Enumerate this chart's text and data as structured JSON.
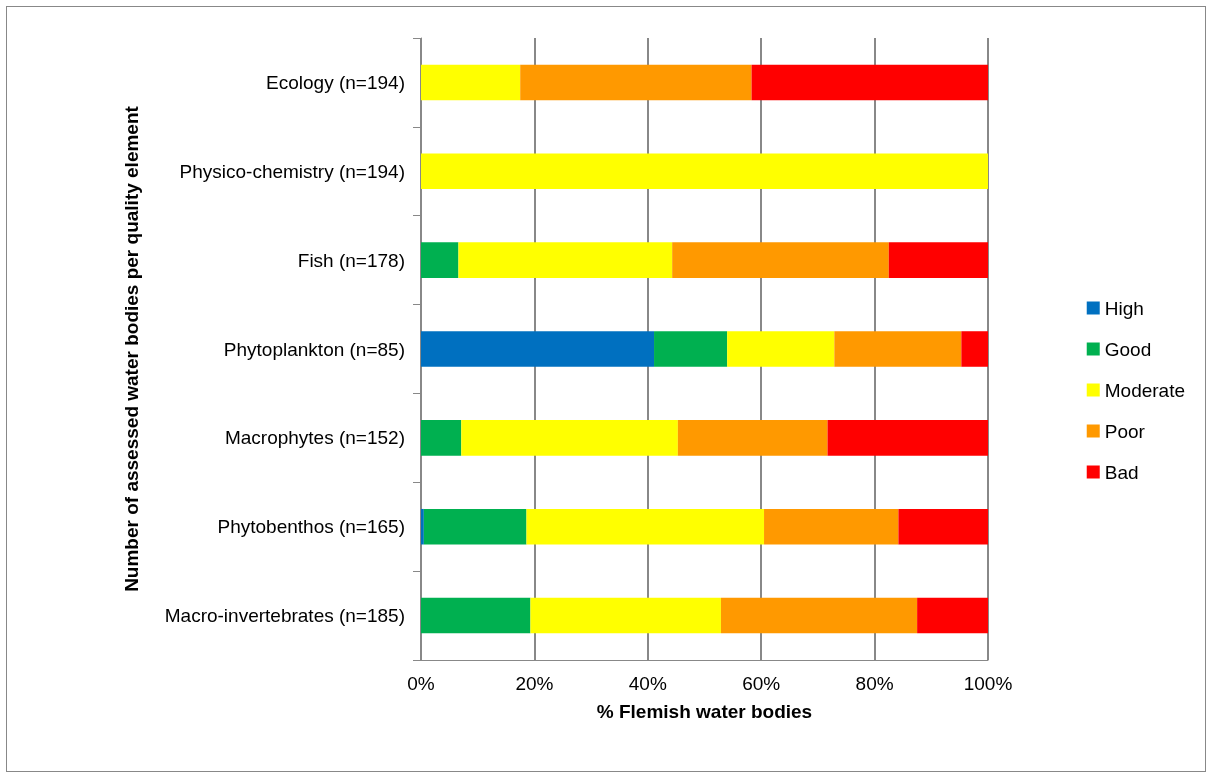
{
  "chart_data": {
    "type": "bar",
    "orientation": "horizontal",
    "stacked": true,
    "xlabel": "% Flemish water bodies",
    "ylabel": "Number of assessed water bodies per quality element",
    "categories": [
      "Ecology (n=194)",
      "Physico-chemistry (n=194)",
      "Fish (n=178)",
      "Phytoplankton (n=85)",
      "Macrophytes (n=152)",
      "Phytobenthos (n=165)",
      "Macro-invertebrates (n=185)"
    ],
    "series": [
      {
        "name": "High",
        "color": "#0070c0",
        "values": [
          null,
          null,
          null,
          41.1,
          null,
          0.5,
          null
        ]
      },
      {
        "name": "Good",
        "color": "#00b050",
        "values": [
          null,
          null,
          6.6,
          12.9,
          7.1,
          18.1,
          19.3
        ]
      },
      {
        "name": "Moderate",
        "color": "#ffff00",
        "values": [
          17.5,
          100,
          37.7,
          18.9,
          38.2,
          41.9,
          33.6
        ]
      },
      {
        "name": "Poor",
        "color": "#ff9900",
        "values": [
          40.8,
          null,
          38.2,
          22.4,
          26.4,
          23.7,
          34.6
        ]
      },
      {
        "name": "Bad",
        "color": "#ff0000",
        "values": [
          41.7,
          null,
          17.5,
          4.7,
          28.3,
          15.8,
          12.5
        ]
      }
    ],
    "xlim": [
      0,
      100
    ],
    "xticks": [
      {
        "value": 0,
        "label": "0%"
      },
      {
        "value": 20,
        "label": "20%"
      },
      {
        "value": 40,
        "label": "40%"
      },
      {
        "value": 60,
        "label": "60%"
      },
      {
        "value": 80,
        "label": "80%"
      },
      {
        "value": 100,
        "label": "100%"
      }
    ],
    "grid": "x",
    "legend": "right"
  }
}
